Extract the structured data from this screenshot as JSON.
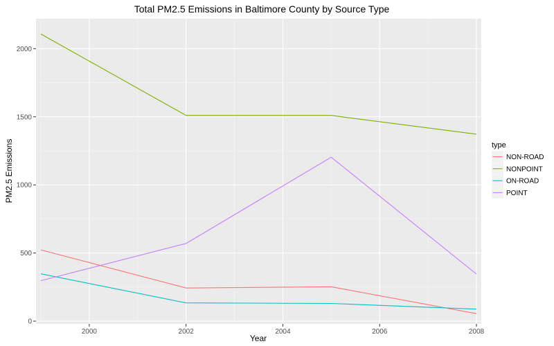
{
  "chart_data": {
    "type": "line",
    "title": "Total PM2.5 Emissions in Baltimore County by Source Type",
    "xlabel": "Year",
    "ylabel": "PM2.5 Emissions",
    "x": [
      1999,
      2002,
      2005,
      2008
    ],
    "xlim": [
      1998.9,
      2008.1
    ],
    "ylim": [
      -20,
      2220
    ],
    "x_ticks": [
      2000,
      2002,
      2004,
      2006,
      2008
    ],
    "y_ticks": [
      0,
      500,
      1000,
      1500,
      2000
    ],
    "grid": true,
    "legend": {
      "title": "type",
      "position": "right"
    },
    "background": "#ebebeb",
    "series": [
      {
        "name": "NON-ROAD",
        "color": "#F8766D",
        "values": [
          523,
          243,
          252,
          55
        ]
      },
      {
        "name": "NONPOINT",
        "color": "#7CAE00",
        "values": [
          2108,
          1510,
          1510,
          1372
        ]
      },
      {
        "name": "ON-ROAD",
        "color": "#00BFC4",
        "values": [
          347,
          134,
          130,
          88
        ]
      },
      {
        "name": "POINT",
        "color": "#C77CFF",
        "values": [
          297,
          570,
          1203,
          345
        ]
      }
    ]
  }
}
